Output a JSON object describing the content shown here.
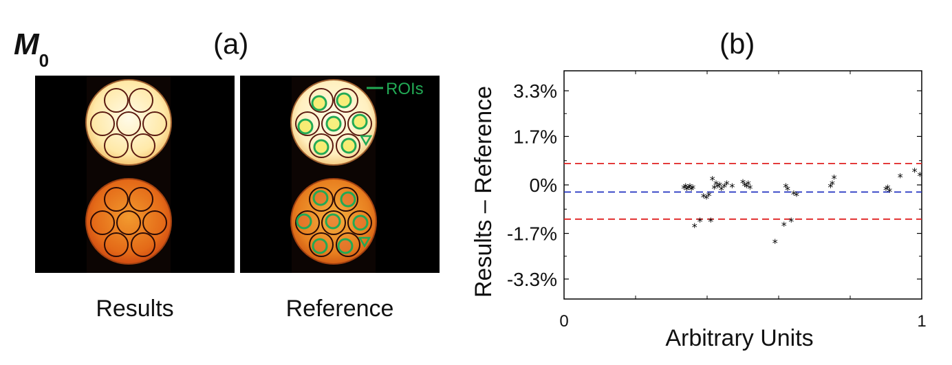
{
  "figure": {
    "quantity_label": "M",
    "quantity_subscript": "0",
    "panel_a_label": "(a)",
    "panel_b_label": "(b)"
  },
  "images": [
    {
      "caption": "Results",
      "legend_label": ""
    },
    {
      "caption": "Reference",
      "legend_label": "ROIs",
      "legend_color": "#22aa55"
    }
  ],
  "chart_data": {
    "type": "scatter",
    "title": "",
    "xlabel": "Arbitrary Units",
    "ylabel": "Results – Reference",
    "xlim": [
      0,
      1
    ],
    "ylim": [
      -4.0,
      4.0
    ],
    "xticks": [
      {
        "v": 0,
        "label": "0"
      },
      {
        "v": 1,
        "label": "1"
      }
    ],
    "yticks": [
      {
        "v": 3.3,
        "label": "3.3%"
      },
      {
        "v": 1.7,
        "label": "1.7%"
      },
      {
        "v": 0,
        "label": "0%"
      },
      {
        "v": -1.7,
        "label": "-1.7%"
      },
      {
        "v": -3.3,
        "label": "-3.3%"
      }
    ],
    "grid": false,
    "marker": "*",
    "marker_color": "#000000",
    "reference_lines": [
      {
        "y": 0.75,
        "color": "#e02020",
        "style": "dashed"
      },
      {
        "y": -0.25,
        "color": "#2030c0",
        "style": "dashed"
      },
      {
        "y": -1.2,
        "color": "#e02020",
        "style": "dashed"
      }
    ],
    "points": [
      [
        0.335,
        -0.1
      ],
      [
        0.34,
        -0.05
      ],
      [
        0.343,
        -0.15
      ],
      [
        0.348,
        -0.1
      ],
      [
        0.352,
        -0.05
      ],
      [
        0.356,
        -0.15
      ],
      [
        0.36,
        -0.1
      ],
      [
        0.365,
        -1.45
      ],
      [
        0.38,
        -1.25
      ],
      [
        0.39,
        -0.4
      ],
      [
        0.398,
        -0.45
      ],
      [
        0.405,
        -0.35
      ],
      [
        0.41,
        -1.25
      ],
      [
        0.415,
        0.2
      ],
      [
        0.42,
        -0.1
      ],
      [
        0.425,
        0.05
      ],
      [
        0.43,
        -0.05
      ],
      [
        0.435,
        0.0
      ],
      [
        0.44,
        -0.15
      ],
      [
        0.448,
        -0.05
      ],
      [
        0.455,
        0.05
      ],
      [
        0.47,
        -0.05
      ],
      [
        0.5,
        0.1
      ],
      [
        0.505,
        0.0
      ],
      [
        0.51,
        -0.05
      ],
      [
        0.515,
        0.05
      ],
      [
        0.52,
        -0.1
      ],
      [
        0.59,
        -2.0
      ],
      [
        0.615,
        -1.4
      ],
      [
        0.62,
        -0.05
      ],
      [
        0.625,
        -0.15
      ],
      [
        0.635,
        -1.25
      ],
      [
        0.642,
        -0.3
      ],
      [
        0.65,
        -0.35
      ],
      [
        0.745,
        -0.05
      ],
      [
        0.75,
        0.05
      ],
      [
        0.755,
        0.25
      ],
      [
        0.9,
        -0.15
      ],
      [
        0.905,
        -0.1
      ],
      [
        0.91,
        -0.2
      ],
      [
        0.94,
        0.3
      ],
      [
        0.98,
        0.5
      ],
      [
        0.995,
        0.35
      ]
    ]
  }
}
